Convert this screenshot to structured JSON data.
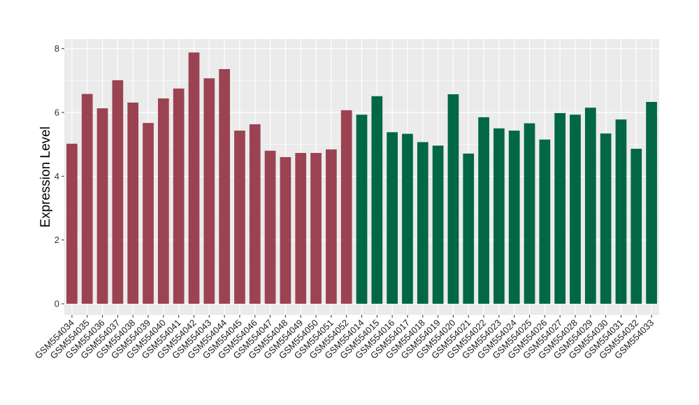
{
  "chart_data": {
    "type": "bar",
    "title": "",
    "xlabel": "",
    "ylabel": "Expression Level",
    "ylim": [
      -0.35,
      8.3
    ],
    "yticks": [
      0,
      2,
      4,
      6,
      8
    ],
    "grid": true,
    "legend": "none",
    "colors": {
      "group_a": "#9b4352",
      "group_b": "#016745",
      "panel": "#ebebeb",
      "grid": "#ffffff"
    },
    "categories": [
      "GSM554034",
      "GSM554035",
      "GSM554036",
      "GSM554037",
      "GSM554038",
      "GSM554039",
      "GSM554040",
      "GSM554041",
      "GSM554042",
      "GSM554043",
      "GSM554044",
      "GSM554045",
      "GSM554046",
      "GSM554047",
      "GSM554048",
      "GSM554049",
      "GSM554050",
      "GSM554051",
      "GSM554052",
      "GSM554014",
      "GSM554015",
      "GSM554016",
      "GSM554017",
      "GSM554018",
      "GSM554019",
      "GSM554020",
      "GSM554021",
      "GSM554022",
      "GSM554023",
      "GSM554024",
      "GSM554025",
      "GSM554026",
      "GSM554027",
      "GSM554028",
      "GSM554029",
      "GSM554030",
      "GSM554031",
      "GSM554032",
      "GSM554033"
    ],
    "values": [
      5.02,
      6.58,
      6.13,
      7.01,
      6.31,
      5.67,
      6.44,
      6.75,
      7.88,
      7.07,
      7.36,
      5.43,
      5.63,
      4.8,
      4.6,
      4.73,
      4.73,
      4.84,
      6.07,
      5.93,
      6.51,
      5.38,
      5.33,
      5.07,
      4.96,
      6.57,
      4.71,
      5.85,
      5.5,
      5.43,
      5.66,
      5.15,
      5.98,
      5.93,
      6.15,
      5.34,
      5.78,
      4.86,
      6.33
    ],
    "groups": [
      "a",
      "a",
      "a",
      "a",
      "a",
      "a",
      "a",
      "a",
      "a",
      "a",
      "a",
      "a",
      "a",
      "a",
      "a",
      "a",
      "a",
      "a",
      "a",
      "b",
      "b",
      "b",
      "b",
      "b",
      "b",
      "b",
      "b",
      "b",
      "b",
      "b",
      "b",
      "b",
      "b",
      "b",
      "b",
      "b",
      "b",
      "b",
      "b"
    ]
  }
}
